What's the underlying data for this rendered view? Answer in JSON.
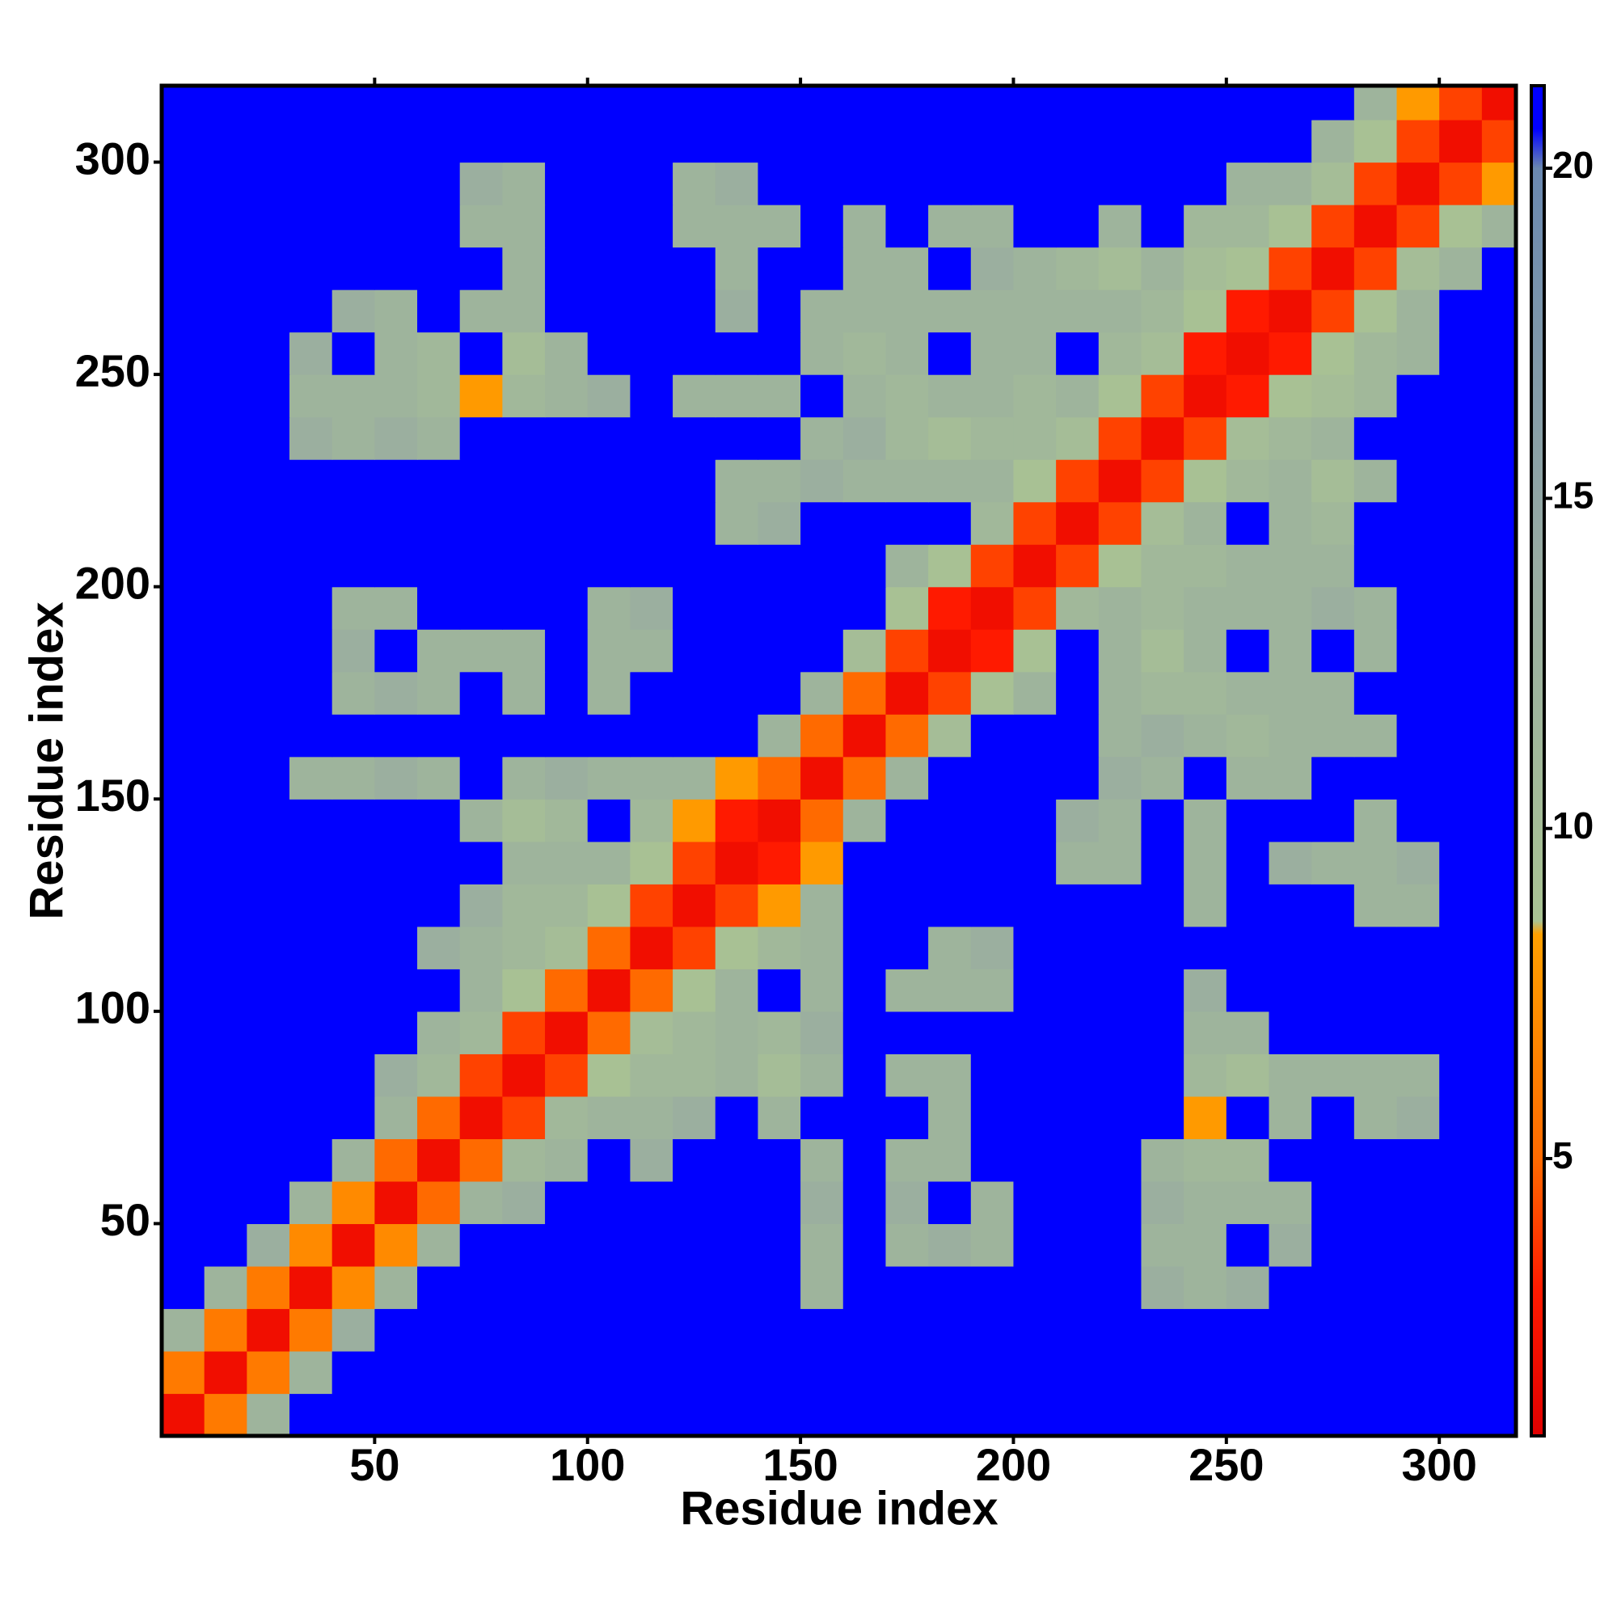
{
  "chart_data": {
    "type": "heatmap",
    "xlabel": "Residue index",
    "ylabel": "Residue index",
    "xlim": [
      0,
      318
    ],
    "ylim": [
      0,
      318
    ],
    "xticks": [
      50,
      100,
      150,
      200,
      250,
      300
    ],
    "yticks": [
      50,
      100,
      150,
      200,
      250,
      300
    ],
    "bins": [
      0,
      10,
      20,
      30,
      40,
      50,
      60,
      70,
      80,
      90,
      100,
      110,
      120,
      130,
      140,
      150,
      160,
      170,
      180,
      190,
      200,
      210,
      220,
      230,
      240,
      250,
      260,
      270,
      280,
      290,
      300,
      310,
      318
    ],
    "clim": [
      0.8,
      21.25
    ],
    "cticks": [
      5,
      10,
      15,
      20
    ],
    "colorscale": [
      [
        0.8,
        "#e00000"
      ],
      [
        3,
        "#ff1a00"
      ],
      [
        5,
        "#ff6a00"
      ],
      [
        8.4,
        "#ffa000"
      ],
      [
        8.6,
        "#a9c393"
      ],
      [
        14,
        "#98aba2"
      ],
      [
        20,
        "#6a88b0"
      ],
      [
        20.6,
        "#0000ff"
      ],
      [
        21.25,
        "#0000ff"
      ]
    ],
    "z": [
      [
        2,
        6,
        12,
        21,
        21,
        21,
        21,
        21,
        21,
        21,
        21,
        21,
        21,
        21,
        21,
        21,
        21,
        21,
        21,
        21,
        21,
        21,
        21,
        21,
        21,
        21,
        21,
        21,
        21,
        21,
        21,
        21
      ],
      [
        6,
        2,
        6,
        12,
        21,
        21,
        21,
        21,
        21,
        21,
        21,
        21,
        21,
        21,
        21,
        21,
        21,
        21,
        21,
        21,
        21,
        21,
        21,
        21,
        21,
        21,
        21,
        21,
        21,
        21,
        21,
        21
      ],
      [
        12,
        6,
        2,
        6,
        13,
        21,
        21,
        21,
        21,
        21,
        21,
        21,
        21,
        21,
        21,
        21,
        21,
        21,
        21,
        21,
        21,
        21,
        21,
        21,
        21,
        21,
        21,
        21,
        21,
        21,
        21,
        21
      ],
      [
        21,
        12,
        6,
        2,
        7,
        12,
        21,
        21,
        21,
        21,
        21,
        21,
        21,
        21,
        21,
        12,
        21,
        21,
        21,
        21,
        21,
        21,
        21,
        13,
        12,
        13,
        21,
        21,
        21,
        21,
        21,
        21
      ],
      [
        21,
        21,
        13,
        7,
        2,
        7,
        12,
        21,
        21,
        21,
        21,
        21,
        21,
        21,
        21,
        12,
        21,
        12,
        13,
        12,
        21,
        21,
        21,
        12,
        12,
        21,
        13,
        21,
        21,
        21,
        21,
        21
      ],
      [
        21,
        21,
        21,
        12,
        7,
        2,
        5,
        12,
        13,
        21,
        21,
        21,
        21,
        21,
        21,
        13,
        21,
        13,
        21,
        12,
        21,
        21,
        21,
        13,
        12,
        12,
        12,
        21,
        21,
        21,
        21,
        21
      ],
      [
        21,
        21,
        21,
        21,
        12,
        5,
        2,
        5,
        11,
        12,
        21,
        13,
        21,
        21,
        21,
        12,
        21,
        12,
        12,
        21,
        21,
        21,
        21,
        12,
        11,
        11,
        21,
        21,
        21,
        21,
        21,
        21
      ],
      [
        21,
        21,
        21,
        21,
        21,
        12,
        5,
        2,
        4,
        11,
        12,
        12,
        13,
        21,
        12,
        21,
        21,
        21,
        12,
        21,
        21,
        21,
        21,
        21,
        8,
        21,
        12,
        21,
        12,
        13,
        21,
        21
      ],
      [
        21,
        21,
        21,
        21,
        21,
        13,
        11,
        4,
        2,
        4,
        9,
        11,
        11,
        12,
        10,
        12,
        21,
        12,
        12,
        21,
        21,
        21,
        21,
        21,
        11,
        10,
        12,
        12,
        12,
        12,
        21,
        21
      ],
      [
        21,
        21,
        21,
        21,
        21,
        21,
        12,
        11,
        4,
        2,
        5,
        10,
        11,
        12,
        11,
        13,
        21,
        21,
        21,
        21,
        21,
        21,
        21,
        21,
        12,
        12,
        21,
        21,
        21,
        21,
        21,
        21
      ],
      [
        21,
        21,
        21,
        21,
        21,
        21,
        21,
        12,
        9,
        5,
        2,
        5,
        9,
        12,
        21,
        12,
        21,
        12,
        12,
        12,
        21,
        21,
        21,
        21,
        13,
        21,
        21,
        21,
        21,
        21,
        21,
        21
      ],
      [
        21,
        21,
        21,
        21,
        21,
        21,
        13,
        12,
        11,
        10,
        5,
        2,
        4,
        9,
        11,
        12,
        21,
        21,
        12,
        13,
        21,
        21,
        21,
        21,
        21,
        21,
        21,
        21,
        21,
        21,
        21,
        21
      ],
      [
        21,
        21,
        21,
        21,
        21,
        21,
        21,
        13,
        11,
        11,
        9,
        4,
        2,
        4,
        8,
        12,
        21,
        21,
        21,
        21,
        21,
        21,
        21,
        21,
        12,
        21,
        21,
        21,
        12,
        12,
        21,
        21
      ],
      [
        21,
        21,
        21,
        21,
        21,
        21,
        21,
        21,
        12,
        12,
        12,
        9,
        4,
        2,
        3,
        8,
        21,
        21,
        21,
        21,
        21,
        12,
        12,
        21,
        12,
        21,
        13,
        12,
        12,
        13,
        21,
        21
      ],
      [
        21,
        21,
        21,
        21,
        21,
        21,
        21,
        12,
        10,
        11,
        21,
        11,
        8,
        3,
        2,
        5,
        12,
        21,
        21,
        21,
        21,
        13,
        12,
        21,
        12,
        21,
        21,
        21,
        12,
        21,
        21,
        21
      ],
      [
        21,
        21,
        21,
        12,
        12,
        13,
        12,
        21,
        12,
        13,
        12,
        12,
        12,
        8,
        5,
        2,
        5,
        12,
        21,
        21,
        21,
        21,
        13,
        12,
        21,
        12,
        12,
        21,
        21,
        21,
        21,
        21
      ],
      [
        21,
        21,
        21,
        21,
        21,
        21,
        21,
        21,
        21,
        21,
        21,
        21,
        21,
        21,
        12,
        5,
        2,
        5,
        10,
        21,
        21,
        21,
        12,
        13,
        12,
        11,
        12,
        12,
        12,
        21,
        21,
        21
      ],
      [
        21,
        21,
        21,
        21,
        12,
        13,
        12,
        21,
        12,
        21,
        12,
        21,
        21,
        21,
        21,
        12,
        5,
        2,
        4,
        9,
        12,
        21,
        12,
        11,
        11,
        12,
        12,
        12,
        21,
        21,
        21,
        21
      ],
      [
        21,
        21,
        21,
        21,
        13,
        21,
        12,
        12,
        12,
        21,
        12,
        12,
        21,
        21,
        21,
        21,
        10,
        4,
        2,
        3,
        9,
        21,
        12,
        10,
        12,
        21,
        12,
        21,
        12,
        21,
        21,
        21
      ],
      [
        21,
        21,
        21,
        21,
        12,
        12,
        21,
        21,
        21,
        21,
        12,
        13,
        21,
        21,
        21,
        21,
        21,
        9,
        3,
        2,
        4,
        11,
        12,
        11,
        12,
        12,
        12,
        13,
        12,
        21,
        21,
        21
      ],
      [
        21,
        21,
        21,
        21,
        21,
        21,
        21,
        21,
        21,
        21,
        21,
        21,
        21,
        21,
        21,
        21,
        21,
        12,
        9,
        4,
        2,
        4,
        9,
        11,
        11,
        12,
        12,
        12,
        21,
        21,
        21,
        21
      ],
      [
        21,
        21,
        21,
        21,
        21,
        21,
        21,
        21,
        21,
        21,
        21,
        21,
        21,
        12,
        13,
        21,
        21,
        21,
        21,
        11,
        4,
        2,
        4,
        10,
        12,
        21,
        12,
        11,
        21,
        21,
        21,
        21
      ],
      [
        21,
        21,
        21,
        21,
        21,
        21,
        21,
        21,
        21,
        21,
        21,
        21,
        21,
        12,
        12,
        13,
        12,
        12,
        12,
        12,
        9,
        4,
        2,
        4,
        9,
        11,
        12,
        10,
        12,
        21,
        21,
        21
      ],
      [
        21,
        21,
        21,
        13,
        12,
        13,
        12,
        21,
        21,
        21,
        21,
        21,
        21,
        21,
        21,
        12,
        13,
        11,
        10,
        11,
        11,
        10,
        4,
        2,
        4,
        10,
        11,
        12,
        21,
        21,
        21,
        21
      ],
      [
        21,
        21,
        21,
        12,
        12,
        12,
        11,
        8,
        11,
        12,
        13,
        21,
        12,
        12,
        12,
        21,
        12,
        11,
        12,
        12,
        11,
        12,
        9,
        4,
        2,
        3,
        9,
        10,
        11,
        21,
        21,
        21
      ],
      [
        21,
        21,
        21,
        13,
        21,
        12,
        11,
        21,
        10,
        12,
        21,
        21,
        21,
        21,
        21,
        12,
        11,
        12,
        21,
        12,
        12,
        21,
        11,
        10,
        3,
        2,
        3,
        9,
        11,
        12,
        21,
        21
      ],
      [
        21,
        21,
        21,
        21,
        13,
        12,
        21,
        12,
        12,
        21,
        21,
        21,
        21,
        13,
        21,
        12,
        12,
        12,
        12,
        12,
        12,
        12,
        12,
        11,
        9,
        3,
        2,
        4,
        9,
        12,
        21,
        21
      ],
      [
        21,
        21,
        21,
        21,
        21,
        21,
        21,
        21,
        12,
        21,
        21,
        21,
        21,
        12,
        21,
        21,
        12,
        12,
        21,
        13,
        12,
        11,
        10,
        12,
        10,
        9,
        4,
        2,
        4,
        10,
        12,
        21
      ],
      [
        21,
        21,
        21,
        21,
        21,
        21,
        21,
        12,
        12,
        21,
        21,
        21,
        12,
        12,
        12,
        21,
        12,
        21,
        12,
        12,
        21,
        21,
        12,
        21,
        11,
        11,
        9,
        4,
        2,
        4,
        9,
        12
      ],
      [
        21,
        21,
        21,
        21,
        21,
        21,
        21,
        13,
        12,
        21,
        21,
        21,
        12,
        13,
        21,
        21,
        21,
        21,
        21,
        21,
        21,
        21,
        21,
        21,
        21,
        12,
        12,
        10,
        4,
        2,
        4,
        8
      ],
      [
        21,
        21,
        21,
        21,
        21,
        21,
        21,
        21,
        21,
        21,
        21,
        21,
        21,
        21,
        21,
        21,
        21,
        21,
        21,
        21,
        21,
        21,
        21,
        21,
        21,
        21,
        21,
        12,
        9,
        4,
        2,
        4
      ],
      [
        21,
        21,
        21,
        21,
        21,
        21,
        21,
        21,
        21,
        21,
        21,
        21,
        21,
        21,
        21,
        21,
        21,
        21,
        21,
        21,
        21,
        21,
        21,
        21,
        21,
        21,
        21,
        21,
        12,
        8,
        4,
        2
      ]
    ]
  }
}
